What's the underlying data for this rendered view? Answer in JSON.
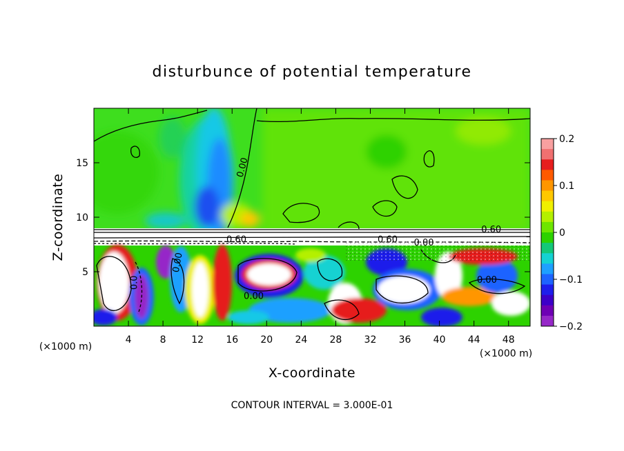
{
  "chart_data": {
    "type": "heatmap",
    "title": "disturbunce of potential temperature",
    "xlabel": "X-coordinate",
    "ylabel": "Z-coordinate",
    "x_unit_left": "(×1000 m)",
    "x_unit_right": "(×1000 m)",
    "xlim": [
      0,
      50.5
    ],
    "ylim": [
      0,
      20
    ],
    "x_ticks": [
      4,
      8,
      12,
      16,
      20,
      24,
      28,
      32,
      36,
      40,
      44,
      48
    ],
    "y_ticks": [
      5,
      10,
      15
    ],
    "colorbar": {
      "range": [
        -0.2,
        0.2
      ],
      "ticks": [
        0.2,
        0.1,
        0,
        -0.1,
        -0.2
      ],
      "tick_labels": [
        "0.2",
        "0.1",
        "0",
        "−0.1",
        "−0.2"
      ],
      "colors": [
        "#f8a0a0",
        "#f07070",
        "#e61e1e",
        "#ff5a00",
        "#ff9600",
        "#ffc800",
        "#f0f000",
        "#b4f000",
        "#6ee600",
        "#2dd200",
        "#14c878",
        "#14d2d2",
        "#1ea0ff",
        "#1e64ff",
        "#1e1eeb",
        "#3c00c8",
        "#6e00b4",
        "#9628c8"
      ]
    },
    "contour_labels": [
      {
        "text": "0.00",
        "x": 17.5,
        "y": 14.5,
        "rotate": -75
      },
      {
        "text": "0.60",
        "x": 46,
        "y": 8.6,
        "rotate": 0
      },
      {
        "text": "0.60",
        "x": 16.5,
        "y": 7.7,
        "rotate": 0
      },
      {
        "text": "0.60",
        "x": 34,
        "y": 7.7,
        "rotate": 0
      },
      {
        "text": "0.00",
        "x": 38.2,
        "y": 7.4,
        "rotate": 0
      },
      {
        "text": "0.0",
        "x": 5,
        "y": 4.0,
        "rotate": -90
      },
      {
        "text": "0.00",
        "x": 10,
        "y": 5.8,
        "rotate": -80
      },
      {
        "text": "0.00",
        "x": 18.5,
        "y": 2.5,
        "rotate": 0
      },
      {
        "text": "0.00",
        "x": 45.5,
        "y": 4.0,
        "rotate": 0
      }
    ],
    "annotation": "CONTOUR INTERVAL = 3.000E-01"
  }
}
